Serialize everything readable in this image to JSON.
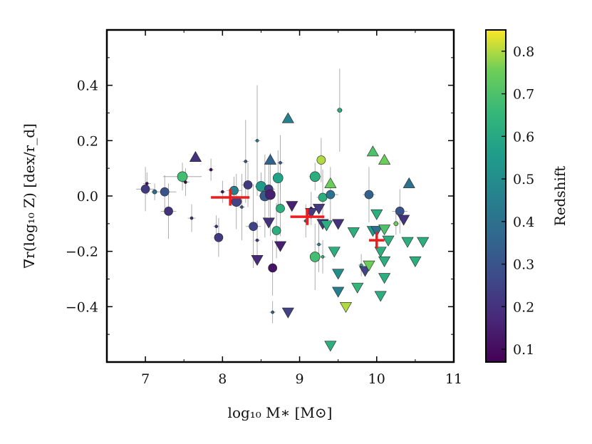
{
  "chart_data": {
    "type": "scatter",
    "xlabel": "log₁₀ M∗  [M⊙]",
    "ylabel": "∇r(log₁₀ Z)  [dex/r_d]",
    "colorbar_label": "Redshift",
    "xlim": [
      6.5,
      11
    ],
    "ylim": [
      -0.6,
      0.6
    ],
    "xticks": [
      7,
      8,
      9,
      10,
      11
    ],
    "yticks": [
      -0.4,
      -0.2,
      0.0,
      0.2,
      0.4
    ],
    "xtick_labels": [
      "7",
      "8",
      "9",
      "10",
      "11"
    ],
    "ytick_labels": [
      "−0.4",
      "−0.2",
      "0.0",
      "0.2",
      "0.4"
    ],
    "colorbar_range": [
      0.07,
      0.85
    ],
    "colorbar_ticks": [
      0.1,
      0.2,
      0.3,
      0.4,
      0.5,
      0.6,
      0.7,
      0.8
    ],
    "colorbar_tick_labels": [
      "0.1",
      "0.2",
      "0.3",
      "0.4",
      "0.5",
      "0.6",
      "0.7",
      "0.8"
    ],
    "series": [
      {
        "name": "circles",
        "marker": "circle",
        "points": [
          {
            "x": 7.0,
            "y": 0.025,
            "z": 0.22,
            "size": 6,
            "xerr": 0.12,
            "yerr": 0.08
          },
          {
            "x": 7.02,
            "y": 0.045,
            "z": 0.1,
            "size": 2,
            "xerr": 0.05,
            "yerr": 0.04
          },
          {
            "x": 7.12,
            "y": 0.015,
            "z": 0.38,
            "size": 3,
            "xerr": 0.05,
            "yerr": 0.03
          },
          {
            "x": 7.25,
            "y": 0.015,
            "z": 0.3,
            "size": 6,
            "xerr": 0.15,
            "yerr": 0.06
          },
          {
            "x": 7.3,
            "y": -0.055,
            "z": 0.2,
            "size": 6,
            "xerr": 0.1,
            "yerr": 0.1
          },
          {
            "x": 7.48,
            "y": 0.07,
            "z": 0.68,
            "size": 7,
            "xerr": 0.25,
            "yerr": 0.05
          },
          {
            "x": 7.52,
            "y": 0.05,
            "z": 0.08,
            "size": 2,
            "xerr": 0.05,
            "yerr": 0.05
          },
          {
            "x": 7.6,
            "y": -0.08,
            "z": 0.2,
            "size": 2,
            "xerr": 0.05,
            "yerr": 0.05
          },
          {
            "x": 7.85,
            "y": 0.095,
            "z": 0.1,
            "size": 2,
            "xerr": 0.04,
            "yerr": 0.04
          },
          {
            "x": 7.95,
            "y": -0.15,
            "z": 0.22,
            "size": 6,
            "xerr": 0.06,
            "yerr": 0.07
          },
          {
            "x": 7.92,
            "y": -0.11,
            "z": 0.2,
            "size": 2,
            "xerr": 0.04,
            "yerr": 0.04
          },
          {
            "x": 8.0,
            "y": 0.015,
            "z": 0.12,
            "size": 2,
            "xerr": 0.04,
            "yerr": 0.04
          },
          {
            "x": 8.15,
            "y": 0.02,
            "z": 0.45,
            "size": 6,
            "xerr": 0.1,
            "yerr": 0.05
          },
          {
            "x": 8.18,
            "y": -0.02,
            "z": 0.25,
            "size": 7,
            "xerr": 0.08,
            "yerr": 0.1
          },
          {
            "x": 8.25,
            "y": -0.04,
            "z": 0.3,
            "size": 2,
            "xerr": 0.04,
            "yerr": 0.12
          },
          {
            "x": 8.3,
            "y": 0.125,
            "z": 0.3,
            "size": 2,
            "xerr": 0.04,
            "yerr": 0.15
          },
          {
            "x": 8.33,
            "y": 0.04,
            "z": 0.22,
            "size": 6,
            "xerr": 0.08,
            "yerr": 0.08
          },
          {
            "x": 8.4,
            "y": -0.11,
            "z": 0.25,
            "size": 6,
            "xerr": 0.1,
            "yerr": 0.15
          },
          {
            "x": 8.45,
            "y": -0.16,
            "z": 0.22,
            "size": 2,
            "xerr": 0.04,
            "yerr": 0.07
          },
          {
            "x": 8.45,
            "y": 0.2,
            "z": 0.45,
            "size": 2,
            "xerr": 0.04,
            "yerr": 0.2
          },
          {
            "x": 8.5,
            "y": 0.035,
            "z": 0.55,
            "size": 7,
            "xerr": 0.08,
            "yerr": 0.05
          },
          {
            "x": 8.55,
            "y": 0.0,
            "z": 0.32,
            "size": 7,
            "xerr": 0.08,
            "yerr": 0.15
          },
          {
            "x": 8.6,
            "y": 0.025,
            "z": 0.22,
            "size": 6,
            "xerr": 0.08,
            "yerr": 0.1
          },
          {
            "x": 8.62,
            "y": 0.005,
            "z": 0.15,
            "size": 7,
            "xerr": 0.06,
            "yerr": 0.15
          },
          {
            "x": 8.65,
            "y": -0.26,
            "z": 0.12,
            "size": 6,
            "xerr": 0.05,
            "yerr": 0.1
          },
          {
            "x": 8.65,
            "y": -0.42,
            "z": 0.35,
            "size": 2,
            "xerr": 0.04,
            "yerr": 0.04
          },
          {
            "x": 8.7,
            "y": -0.125,
            "z": 0.62,
            "size": 6,
            "xerr": 0.06,
            "yerr": 0.1
          },
          {
            "x": 8.72,
            "y": 0.065,
            "z": 0.58,
            "size": 7,
            "xerr": 0.06,
            "yerr": 0.1
          },
          {
            "x": 8.75,
            "y": -0.045,
            "z": 0.62,
            "size": 6,
            "xerr": 0.06,
            "yerr": 0.1
          },
          {
            "x": 9.2,
            "y": 0.07,
            "z": 0.62,
            "size": 7,
            "xerr": 0.08,
            "yerr": 0.05
          },
          {
            "x": 9.28,
            "y": 0.13,
            "z": 0.8,
            "size": 6,
            "xerr": 0.06,
            "yerr": 0.08
          },
          {
            "x": 9.3,
            "y": -0.005,
            "z": 0.62,
            "size": 6,
            "xerr": 0.08,
            "yerr": 0.1
          },
          {
            "x": 9.4,
            "y": 0.005,
            "z": 0.4,
            "size": 6,
            "xerr": 0.1,
            "yerr": 0.1
          },
          {
            "x": 9.52,
            "y": 0.31,
            "z": 0.62,
            "size": 3,
            "xerr": 0.04,
            "yerr": 0.15
          },
          {
            "x": 9.15,
            "y": -0.045,
            "z": 0.12,
            "size": 2,
            "xerr": 0.04,
            "yerr": 0.06
          },
          {
            "x": 9.2,
            "y": -0.22,
            "z": 0.68,
            "size": 7,
            "xerr": 0.06,
            "yerr": 0.12
          },
          {
            "x": 9.25,
            "y": -0.175,
            "z": 0.45,
            "size": 2,
            "xerr": 0.04,
            "yerr": 0.1
          },
          {
            "x": 9.3,
            "y": -0.22,
            "z": 0.62,
            "size": 2,
            "xerr": 0.04,
            "yerr": 0.06
          },
          {
            "x": 9.8,
            "y": -0.25,
            "z": 0.62,
            "size": 2,
            "xerr": 0.04,
            "yerr": 0.04
          },
          {
            "x": 9.9,
            "y": 0.005,
            "z": 0.35,
            "size": 6,
            "xerr": 0.08,
            "yerr": 0.1
          },
          {
            "x": 10.3,
            "y": -0.055,
            "z": 0.3,
            "size": 6,
            "xerr": 0.1,
            "yerr": 0.08
          },
          {
            "x": 10.25,
            "y": -0.1,
            "z": 0.75,
            "size": 3,
            "xerr": 0.04,
            "yerr": 0.04
          },
          {
            "x": 9.08,
            "y": -0.09,
            "z": 0.35,
            "size": 2,
            "xerr": 0.04,
            "yerr": 0.06
          },
          {
            "x": 8.75,
            "y": 0.12,
            "z": 0.3,
            "size": 2,
            "xerr": 0.04,
            "yerr": 0.1
          }
        ]
      },
      {
        "name": "upward triangles",
        "marker": "triangle-up",
        "points": [
          {
            "x": 7.65,
            "y": 0.14,
            "z": 0.2,
            "size": 7
          },
          {
            "x": 8.85,
            "y": 0.28,
            "z": 0.45,
            "size": 7
          },
          {
            "x": 8.62,
            "y": 0.13,
            "z": 0.35,
            "size": 7
          },
          {
            "x": 9.4,
            "y": 0.045,
            "z": 0.75,
            "size": 7
          },
          {
            "x": 9.95,
            "y": 0.16,
            "z": 0.7,
            "size": 7
          },
          {
            "x": 10.1,
            "y": 0.13,
            "z": 0.75,
            "size": 7
          },
          {
            "x": 10.42,
            "y": 0.045,
            "z": 0.4,
            "size": 7
          }
        ]
      },
      {
        "name": "downward triangles",
        "marker": "triangle-down",
        "points": [
          {
            "x": 8.45,
            "y": -0.23,
            "z": 0.18,
            "size": 7
          },
          {
            "x": 8.6,
            "y": -0.095,
            "z": 0.2,
            "size": 7
          },
          {
            "x": 8.75,
            "y": -0.18,
            "z": 0.15,
            "size": 7
          },
          {
            "x": 8.85,
            "y": -0.42,
            "z": 0.25,
            "size": 7
          },
          {
            "x": 8.9,
            "y": -0.035,
            "z": 0.15,
            "size": 7
          },
          {
            "x": 9.15,
            "y": -0.06,
            "z": 0.22,
            "size": 7
          },
          {
            "x": 9.25,
            "y": -0.045,
            "z": 0.22,
            "size": 7
          },
          {
            "x": 9.3,
            "y": -0.1,
            "z": 0.22,
            "size": 7
          },
          {
            "x": 9.35,
            "y": -0.105,
            "z": 0.62,
            "size": 7
          },
          {
            "x": 9.4,
            "y": -0.54,
            "z": 0.62,
            "size": 7
          },
          {
            "x": 9.45,
            "y": -0.2,
            "z": 0.62,
            "size": 7
          },
          {
            "x": 9.5,
            "y": -0.1,
            "z": 0.2,
            "size": 7
          },
          {
            "x": 9.5,
            "y": -0.28,
            "z": 0.5,
            "size": 7
          },
          {
            "x": 9.5,
            "y": -0.345,
            "z": 0.45,
            "size": 7
          },
          {
            "x": 9.6,
            "y": -0.4,
            "z": 0.8,
            "size": 7
          },
          {
            "x": 9.7,
            "y": -0.13,
            "z": 0.62,
            "size": 7
          },
          {
            "x": 9.75,
            "y": -0.33,
            "z": 0.65,
            "size": 7
          },
          {
            "x": 9.85,
            "y": -0.27,
            "z": 0.25,
            "size": 7
          },
          {
            "x": 9.9,
            "y": -0.25,
            "z": 0.75,
            "size": 7
          },
          {
            "x": 9.95,
            "y": -0.125,
            "z": 0.55,
            "size": 7
          },
          {
            "x": 10.0,
            "y": -0.065,
            "z": 0.62,
            "size": 7
          },
          {
            "x": 10.0,
            "y": -0.125,
            "z": 0.4,
            "size": 7
          },
          {
            "x": 10.05,
            "y": -0.2,
            "z": 0.62,
            "size": 7
          },
          {
            "x": 10.05,
            "y": -0.36,
            "z": 0.62,
            "size": 7
          },
          {
            "x": 10.1,
            "y": -0.295,
            "z": 0.62,
            "size": 7
          },
          {
            "x": 10.1,
            "y": -0.235,
            "z": 0.62,
            "size": 7
          },
          {
            "x": 10.15,
            "y": -0.16,
            "z": 0.62,
            "size": 7
          },
          {
            "x": 10.35,
            "y": -0.085,
            "z": 0.2,
            "size": 7
          },
          {
            "x": 10.4,
            "y": -0.165,
            "z": 0.62,
            "size": 7
          },
          {
            "x": 10.5,
            "y": -0.235,
            "z": 0.62,
            "size": 7
          },
          {
            "x": 10.6,
            "y": -0.165,
            "z": 0.62,
            "size": 7
          },
          {
            "x": 10.1,
            "y": -0.12,
            "z": 0.7,
            "size": 7
          }
        ]
      },
      {
        "name": "binned medians",
        "marker": "cross",
        "color": "#ee1c1c",
        "points": [
          {
            "x": 8.1,
            "y": -0.005,
            "xerr": 0.25,
            "yerr": 0.03
          },
          {
            "x": 9.1,
            "y": -0.075,
            "xerr": 0.22,
            "yerr": 0.03
          },
          {
            "x": 10.0,
            "y": -0.16,
            "xerr": 0.1,
            "yerr": 0.03
          }
        ]
      }
    ]
  }
}
